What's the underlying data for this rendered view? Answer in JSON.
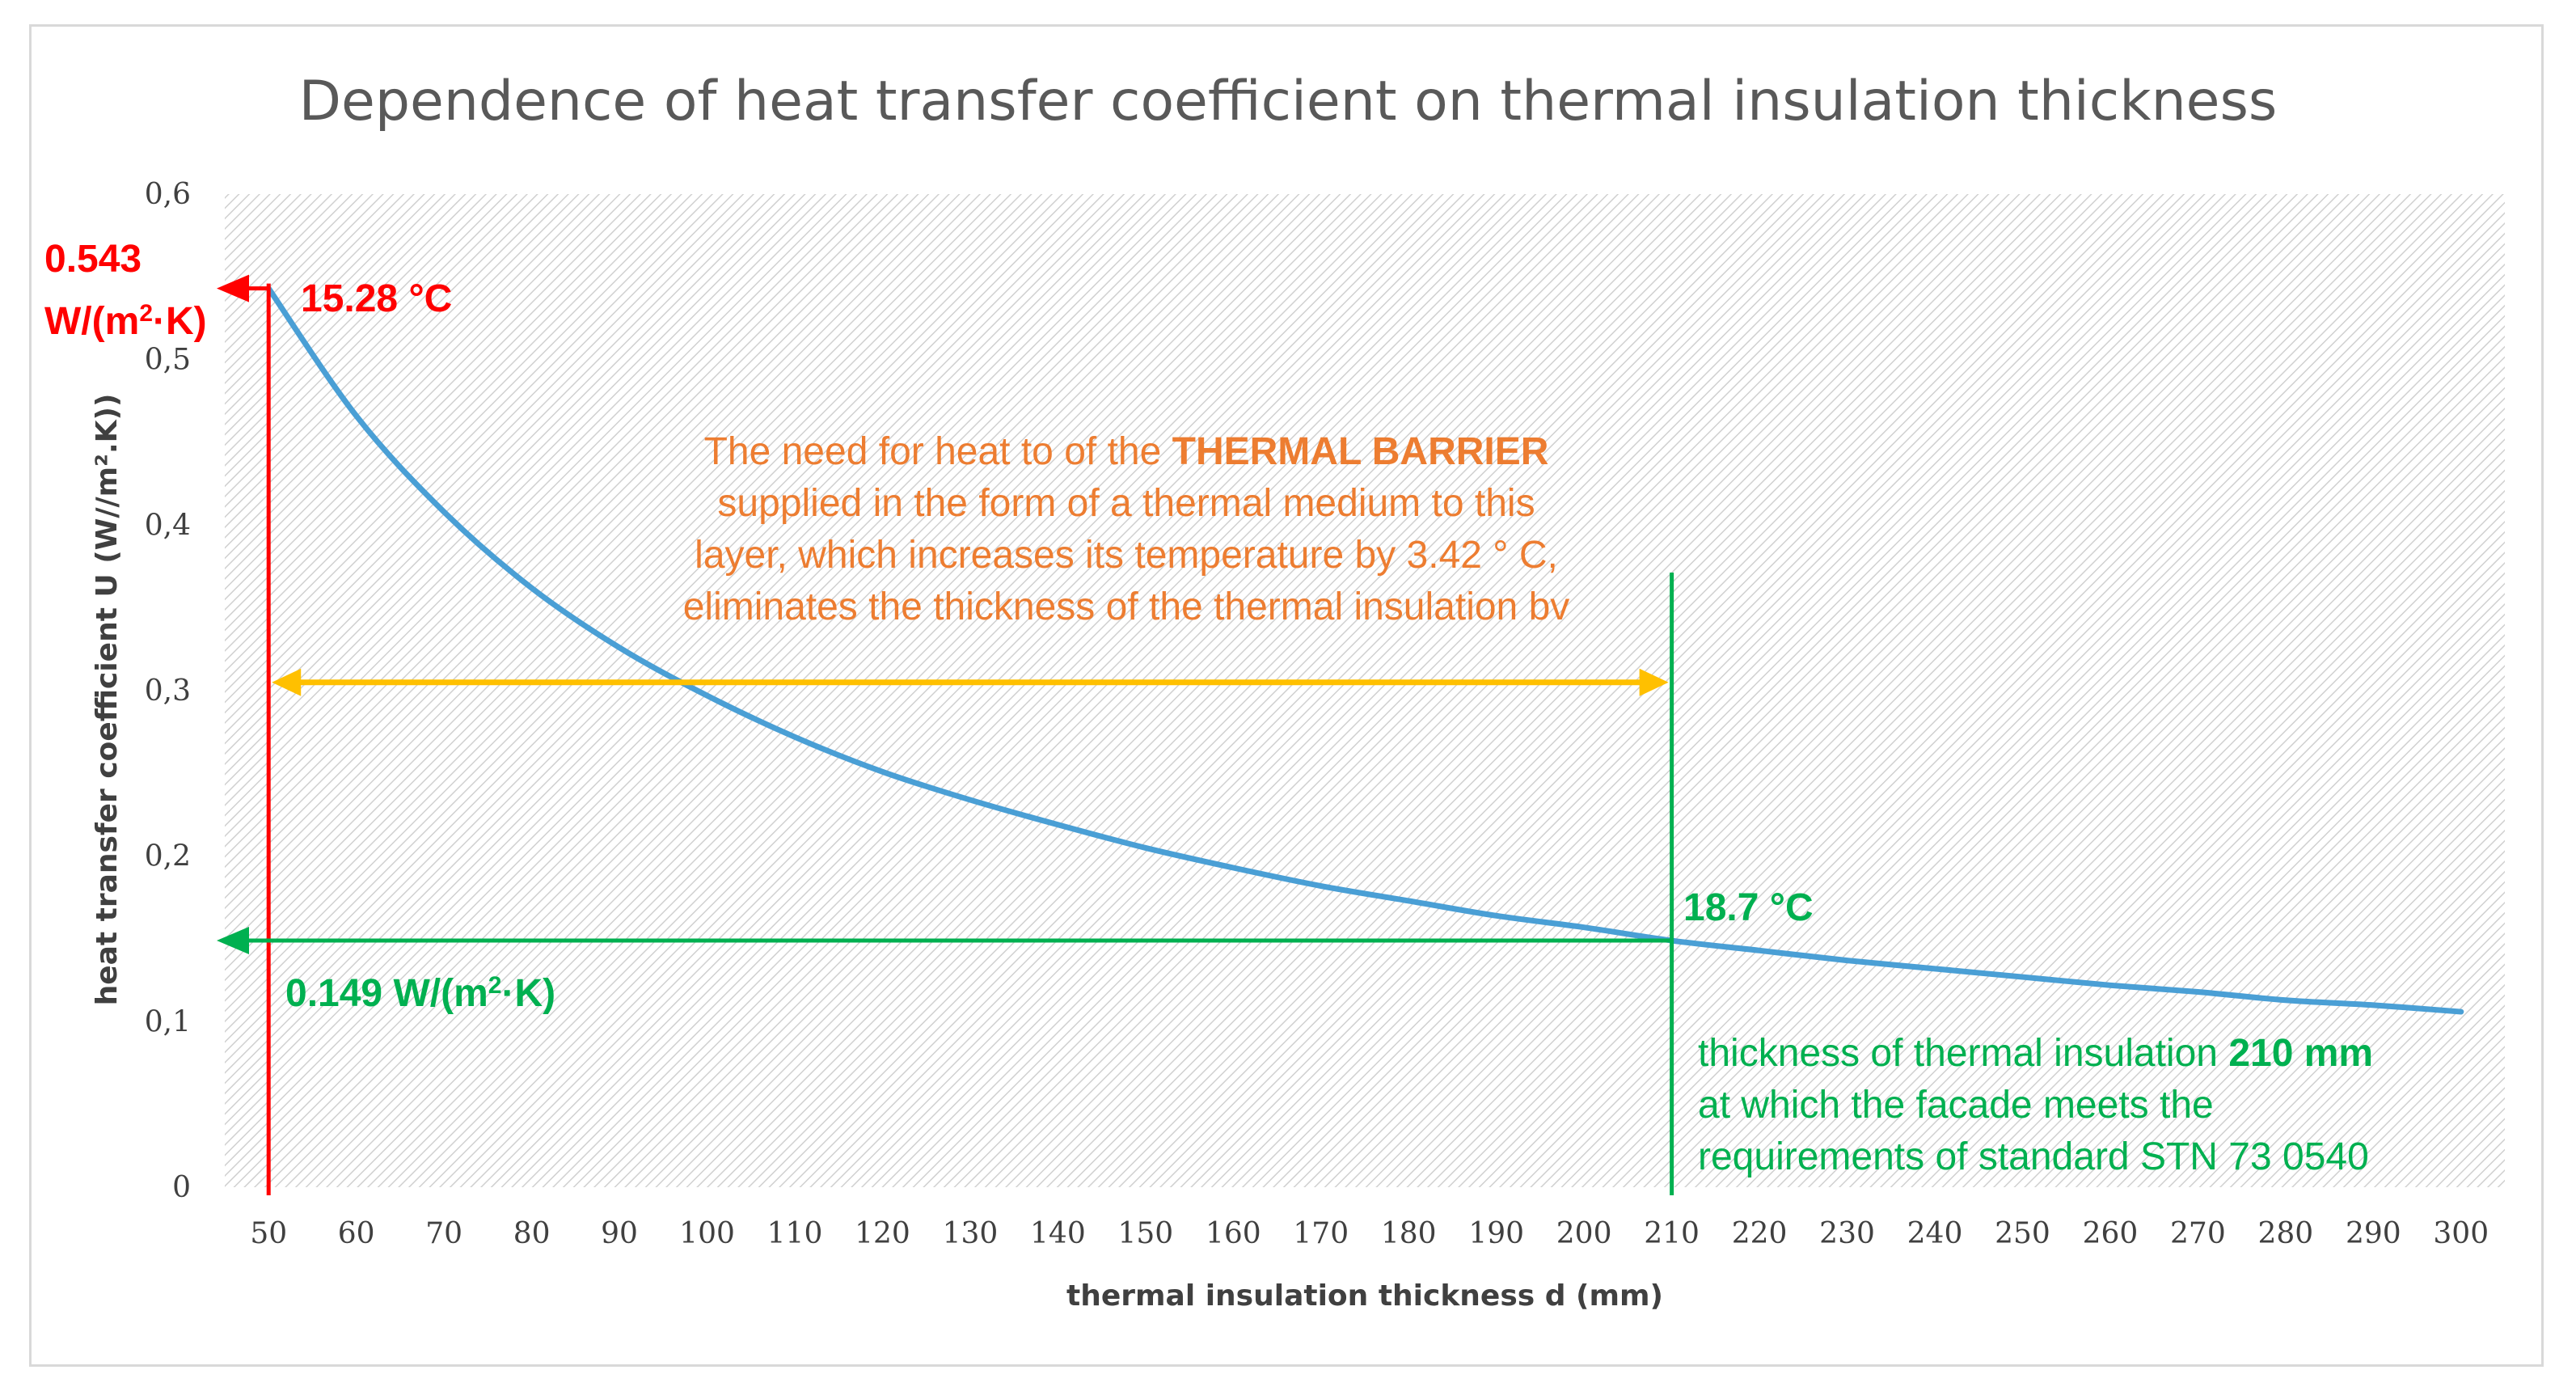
{
  "chart_data": {
    "type": "line",
    "title": "Dependence of heat transfer coefficient on thermal insulation thickness",
    "xlabel": "thermal insulation thickness d (mm)",
    "ylabel": "heat transfer coefficient U (W//m².K))",
    "x": [
      50,
      60,
      70,
      80,
      90,
      100,
      110,
      120,
      130,
      140,
      150,
      160,
      170,
      180,
      190,
      200,
      210,
      220,
      230,
      240,
      250,
      260,
      270,
      280,
      290,
      300
    ],
    "series": [
      {
        "name": "U",
        "color": "#4a9fd5",
        "values": [
          0.543,
          0.466,
          0.408,
          0.362,
          0.326,
          0.297,
          0.272,
          0.251,
          0.234,
          0.219,
          0.205,
          0.193,
          0.182,
          0.173,
          0.164,
          0.157,
          0.149,
          0.143,
          0.137,
          0.132,
          0.127,
          0.122,
          0.118,
          0.113,
          0.11,
          0.106
        ]
      }
    ],
    "x_ticks": [
      "50",
      "60",
      "70",
      "80",
      "90",
      "100",
      "110",
      "120",
      "130",
      "140",
      "150",
      "160",
      "170",
      "180",
      "190",
      "200",
      "210",
      "220",
      "230",
      "240",
      "250",
      "260",
      "270",
      "280",
      "290",
      "300"
    ],
    "y_ticks": [
      "0",
      "0,1",
      "0,2",
      "0,3",
      "0,4",
      "0,5",
      "0,6"
    ],
    "y_tick_values": [
      0,
      0.1,
      0.2,
      0.3,
      0.4,
      0.5,
      0.6
    ],
    "xlim": [
      45,
      305
    ],
    "ylim": [
      0,
      0.6
    ],
    "grid": false,
    "background": "hatched",
    "annotations": {
      "start": {
        "x": 50,
        "y": 0.543,
        "value_line1": "0.543",
        "value_line2_base": "W/(m",
        "value_line2_sup": "2",
        "value_line2_tail": "·K)",
        "temperature": "15.28 °C",
        "color": "#ff0000"
      },
      "end": {
        "x": 210,
        "y": 0.149,
        "temperature": "18.7 °C",
        "value_base": "0.149 W/(m",
        "value_sup": "2",
        "value_tail": "·K)",
        "note_line1_normal": "thickness of thermal insulation ",
        "note_line1_bold": "210 mm",
        "note_line2": "at which the facade meets the",
        "note_line3": "requirements of standard STN 73 0540",
        "color": "#00b050"
      },
      "span": {
        "from_x": 50,
        "to_x": 210,
        "y": 0.305,
        "color": "#ffc000"
      },
      "barrier_text": {
        "line1_normal": "The need for heat to of the ",
        "line1_bold": "THERMAL BARRIER",
        "line2": "supplied in the form of a thermal medium to this",
        "line3": "layer, which increases its temperature by 3.42 ° C,",
        "line4": "eliminates the thickness of the thermal insulation bv",
        "color": "#ed7d31"
      }
    }
  }
}
